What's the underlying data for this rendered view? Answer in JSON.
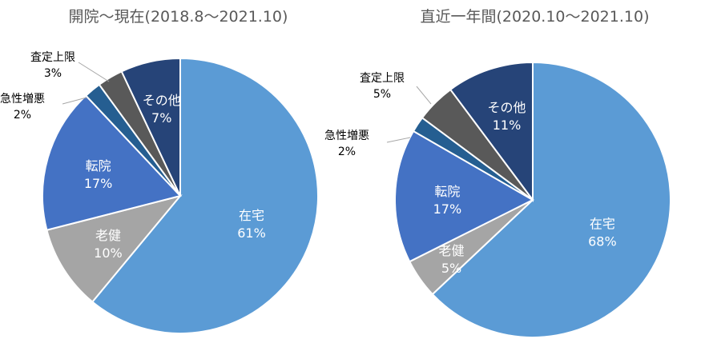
{
  "colors": {
    "在宅": "#5B9BD5",
    "老健": "#A5A5A5",
    "転院": "#4472C4",
    "急性増悪": "#255E91",
    "査定上限": "#595959",
    "その他": "#264478"
  },
  "chart_data": [
    {
      "type": "pie",
      "title": "開院～現在(2018.8～2021.10)",
      "categories": [
        "在宅",
        "老健",
        "転院",
        "急性増悪",
        "査定上限",
        "その他"
      ],
      "values": [
        61,
        10,
        17,
        2,
        3,
        7
      ],
      "labels": [
        "61%",
        "10%",
        "17%",
        "2%",
        "3%",
        "7%"
      ]
    },
    {
      "type": "pie",
      "title": "直近一年間(2020.10～2021.10)",
      "categories": [
        "在宅",
        "老健",
        "転院",
        "急性増悪",
        "査定上限",
        "その他"
      ],
      "values": [
        68,
        5,
        17,
        2,
        5,
        11
      ],
      "labels": [
        "68%",
        "5%",
        "17%",
        "2%",
        "5%",
        "11%"
      ]
    }
  ]
}
